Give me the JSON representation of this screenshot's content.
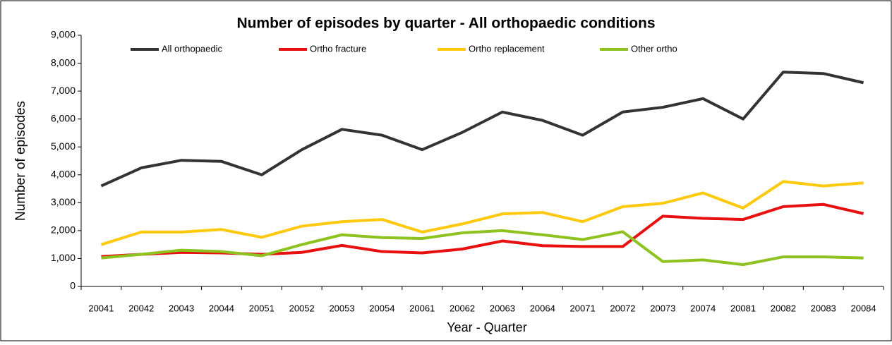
{
  "chart_data": {
    "type": "line",
    "title": "Number of episodes by quarter - All orthopaedic conditions",
    "x_label": "Year - Quarter",
    "y_label": "Number of episodes",
    "categories": [
      "20041",
      "20042",
      "20043",
      "20044",
      "20051",
      "20052",
      "20053",
      "20054",
      "20061",
      "20062",
      "20063",
      "20064",
      "20071",
      "20072",
      "20073",
      "20074",
      "20081",
      "20082",
      "20083",
      "20084"
    ],
    "series": [
      {
        "name": "All orthopaedic",
        "color": "#333333",
        "values": [
          3600,
          4250,
          4520,
          4480,
          4000,
          4900,
          5630,
          5420,
          4900,
          5520,
          6250,
          5950,
          5420,
          6250,
          6420,
          6730,
          6000,
          7680,
          7630,
          7300
        ]
      },
      {
        "name": "Ortho fracture",
        "color": "#e8100e",
        "values": [
          1070,
          1150,
          1220,
          1200,
          1150,
          1220,
          1470,
          1250,
          1200,
          1340,
          1630,
          1460,
          1430,
          1430,
          2520,
          2440,
          2400,
          2860,
          2940,
          2610
        ]
      },
      {
        "name": "Ortho replacement",
        "color": "#ffc90e",
        "values": [
          1500,
          1950,
          1950,
          2040,
          1760,
          2160,
          2320,
          2400,
          1950,
          2240,
          2600,
          2650,
          2320,
          2860,
          2980,
          3350,
          2810,
          3760,
          3600,
          3710
        ]
      },
      {
        "name": "Other ortho",
        "color": "#8dc21f",
        "values": [
          1020,
          1150,
          1300,
          1250,
          1100,
          1500,
          1850,
          1750,
          1720,
          1920,
          2000,
          1850,
          1680,
          1960,
          890,
          950,
          780,
          1060,
          1060,
          1020
        ]
      }
    ],
    "ylim": [
      0,
      9000
    ],
    "yticks": [
      0,
      {
        "value": 1000,
        "label": "1,000"
      },
      {
        "value": 2000,
        "label": "2,000"
      },
      {
        "value": 3000,
        "label": "3,000"
      },
      {
        "value": 4000,
        "label": "4,000"
      },
      {
        "value": 5000,
        "label": "5,000"
      },
      {
        "value": 6000,
        "label": "6,000"
      },
      {
        "value": 7000,
        "label": "7,000"
      },
      {
        "value": 8000,
        "label": "8,000"
      },
      {
        "value": 9000,
        "label": "9,000"
      }
    ],
    "legend": "top"
  }
}
